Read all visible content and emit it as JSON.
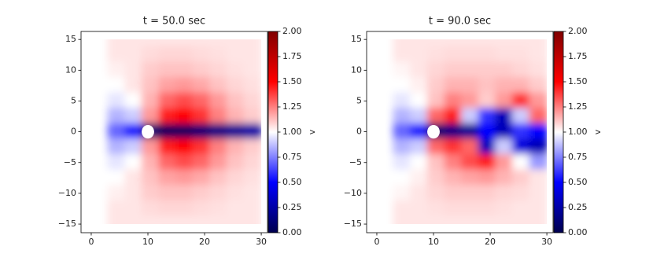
{
  "chart_data": [
    {
      "type": "heatmap",
      "title": "t = 50.0 sec",
      "colormap": "seismic",
      "clim": [
        0,
        2
      ],
      "colorbar_label": "v",
      "xlim": [
        -1.8,
        31.1
      ],
      "ylim": [
        -16.4,
        16.3
      ],
      "xticks": [
        0,
        10,
        20,
        30
      ],
      "yticks": [
        {
          "value": -15,
          "label": "−15"
        },
        {
          "value": -10,
          "label": "−10"
        },
        {
          "value": -5,
          "label": "−5"
        },
        0,
        5,
        10,
        15
      ],
      "cbticks": [
        {
          "value": 0,
          "label": "0.00"
        },
        {
          "value": 0.25,
          "label": "0.25"
        },
        {
          "value": 0.5,
          "label": "0.50"
        },
        {
          "value": 0.75,
          "label": "0.75"
        },
        {
          "value": 1,
          "label": "1.00"
        },
        {
          "value": 1.25,
          "label": "1.25"
        },
        {
          "value": 1.5,
          "label": "1.50"
        },
        {
          "value": 1.75,
          "label": "1.75"
        },
        {
          "value": 2,
          "label": "2.00"
        }
      ],
      "obstacle": {
        "x": 10,
        "y": 0,
        "r": 1.1
      },
      "x": [
        4.5,
        7.5,
        10.5,
        13.5,
        16.5,
        19.5,
        22.5,
        25.5,
        28.5
      ],
      "y": [
        15,
        12.5,
        10,
        7.5,
        5,
        2.5,
        0,
        -2.5,
        -5,
        -7.5,
        -10,
        -12.5,
        -15
      ],
      "z": [
        [
          1.05,
          1.05,
          1.05,
          1.05,
          1.05,
          1.05,
          1.05,
          1.05,
          1.05
        ],
        [
          1.05,
          1.05,
          1.07,
          1.08,
          1.08,
          1.07,
          1.06,
          1.05,
          1.05
        ],
        [
          1.03,
          1.05,
          1.1,
          1.12,
          1.12,
          1.1,
          1.08,
          1.06,
          1.05
        ],
        [
          1.0,
          1.05,
          1.12,
          1.18,
          1.2,
          1.17,
          1.12,
          1.08,
          1.06
        ],
        [
          0.95,
          1.0,
          1.15,
          1.3,
          1.35,
          1.3,
          1.2,
          1.12,
          1.08
        ],
        [
          0.85,
          0.9,
          1.2,
          1.45,
          1.5,
          1.4,
          1.25,
          1.15,
          1.1
        ],
        [
          0.7,
          0.55,
          0.1,
          0.05,
          0.05,
          0.1,
          0.15,
          0.2,
          0.25
        ],
        [
          0.85,
          0.9,
          1.2,
          1.45,
          1.5,
          1.4,
          1.25,
          1.15,
          1.1
        ],
        [
          0.95,
          1.0,
          1.15,
          1.3,
          1.35,
          1.3,
          1.2,
          1.12,
          1.08
        ],
        [
          1.0,
          1.05,
          1.12,
          1.18,
          1.2,
          1.17,
          1.12,
          1.08,
          1.06
        ],
        [
          1.03,
          1.05,
          1.1,
          1.12,
          1.12,
          1.1,
          1.08,
          1.06,
          1.05
        ],
        [
          1.05,
          1.05,
          1.07,
          1.08,
          1.08,
          1.07,
          1.06,
          1.05,
          1.05
        ],
        [
          1.05,
          1.05,
          1.05,
          1.05,
          1.05,
          1.05,
          1.05,
          1.05,
          1.05
        ]
      ]
    },
    {
      "type": "heatmap",
      "title": "t = 90.0 sec",
      "colormap": "seismic",
      "clim": [
        0,
        2
      ],
      "colorbar_label": "v",
      "xlim": [
        -1.8,
        31.1
      ],
      "ylim": [
        -16.4,
        16.3
      ],
      "xticks": [
        0,
        10,
        20,
        30
      ],
      "yticks": [
        {
          "value": -15,
          "label": "−15"
        },
        {
          "value": -10,
          "label": "−10"
        },
        {
          "value": -5,
          "label": "−5"
        },
        0,
        5,
        10,
        15
      ],
      "cbticks": [
        {
          "value": 0,
          "label": "0.00"
        },
        {
          "value": 0.25,
          "label": "0.25"
        },
        {
          "value": 0.5,
          "label": "0.50"
        },
        {
          "value": 0.75,
          "label": "0.75"
        },
        {
          "value": 1,
          "label": "1.00"
        },
        {
          "value": 1.25,
          "label": "1.25"
        },
        {
          "value": 1.5,
          "label": "1.50"
        },
        {
          "value": 1.75,
          "label": "1.75"
        },
        {
          "value": 2,
          "label": "2.00"
        }
      ],
      "obstacle": {
        "x": 10,
        "y": 0,
        "r": 1.1
      },
      "x": [
        4.5,
        7.5,
        10.5,
        13.5,
        16.5,
        19.5,
        22.5,
        25.5,
        28.5
      ],
      "y": [
        15,
        12.5,
        10,
        7.5,
        5,
        2.5,
        0,
        -2.5,
        -5,
        -7.5,
        -10,
        -12.5,
        -15
      ],
      "z": [
        [
          1.05,
          1.05,
          1.05,
          1.05,
          1.05,
          1.05,
          1.05,
          1.05,
          1.05
        ],
        [
          1.05,
          1.05,
          1.06,
          1.07,
          1.07,
          1.07,
          1.06,
          1.06,
          1.05
        ],
        [
          1.02,
          1.05,
          1.08,
          1.1,
          1.1,
          1.1,
          1.1,
          1.08,
          1.06
        ],
        [
          1.0,
          1.03,
          1.1,
          1.15,
          1.15,
          1.12,
          1.15,
          1.15,
          1.1
        ],
        [
          0.95,
          1.0,
          1.12,
          1.25,
          1.2,
          1.1,
          1.2,
          1.4,
          1.2
        ],
        [
          0.85,
          0.9,
          1.3,
          1.45,
          0.9,
          0.6,
          0.3,
          0.9,
          1.3
        ],
        [
          0.7,
          0.55,
          0.1,
          0.15,
          0.2,
          0.5,
          0.3,
          0.6,
          0.5
        ],
        [
          0.85,
          0.9,
          1.3,
          1.4,
          1.3,
          0.3,
          0.9,
          0.4,
          0.3
        ],
        [
          0.95,
          1.0,
          1.12,
          1.25,
          1.35,
          1.45,
          1.2,
          1.0,
          0.8
        ],
        [
          1.0,
          1.03,
          1.1,
          1.15,
          1.18,
          1.2,
          1.15,
          1.1,
          1.05
        ],
        [
          1.02,
          1.05,
          1.08,
          1.1,
          1.1,
          1.1,
          1.08,
          1.07,
          1.05
        ],
        [
          1.05,
          1.05,
          1.06,
          1.07,
          1.07,
          1.07,
          1.06,
          1.05,
          1.05
        ],
        [
          1.05,
          1.05,
          1.05,
          1.05,
          1.05,
          1.05,
          1.05,
          1.05,
          1.05
        ]
      ]
    }
  ]
}
